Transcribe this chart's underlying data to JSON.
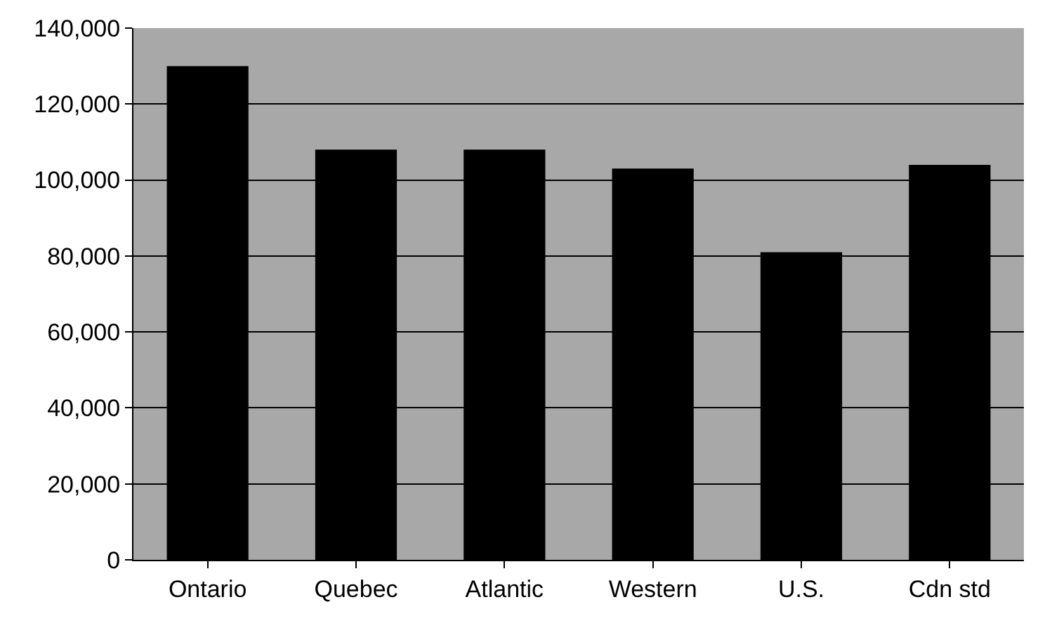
{
  "chart_data": {
    "type": "bar",
    "categories": [
      "Ontario",
      "Quebec",
      "Atlantic",
      "Western",
      "U.S.",
      "Cdn std"
    ],
    "values": [
      130000,
      108000,
      108000,
      103000,
      81000,
      104000
    ],
    "color": "#000000",
    "ylim": [
      0,
      140000
    ],
    "yticks": [
      {
        "value": 0,
        "label": "0"
      },
      {
        "value": 20000,
        "label": "20,000"
      },
      {
        "value": 40000,
        "label": "40,000"
      },
      {
        "value": 60000,
        "label": "60,000"
      },
      {
        "value": 80000,
        "label": "80,000"
      },
      {
        "value": 100000,
        "label": "100,000"
      },
      {
        "value": 120000,
        "label": "120,000"
      },
      {
        "value": 140000,
        "label": "140,000"
      }
    ],
    "grid": "y"
  }
}
